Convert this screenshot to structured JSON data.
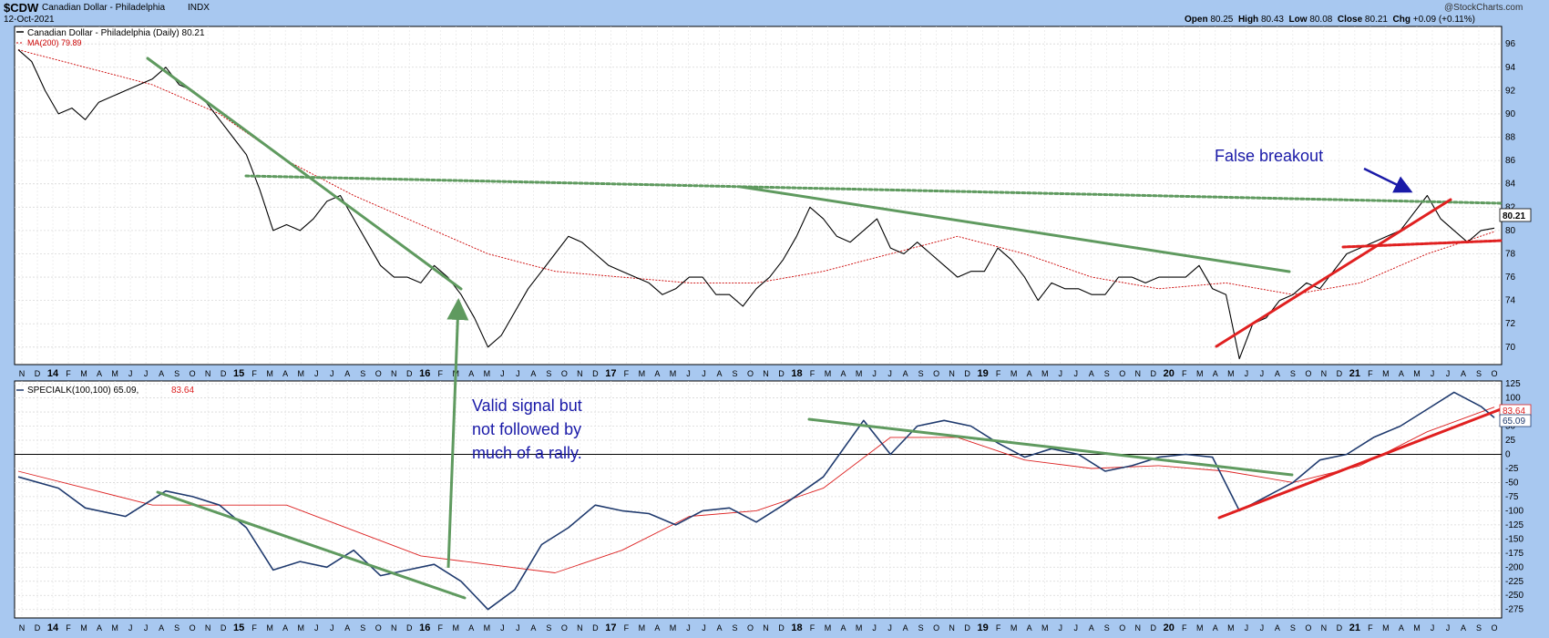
{
  "header": {
    "symbol": "$CDW",
    "name": "Canadian Dollar - Philadelphia",
    "exchange": "INDX",
    "date": "12-Oct-2021",
    "watermark": "@StockCharts.com",
    "ohlc": {
      "open_label": "Open",
      "open": "80.25",
      "high_label": "High",
      "high": "80.43",
      "low_label": "Low",
      "low": "80.08",
      "close_label": "Close",
      "close": "80.21",
      "chg_label": "Chg",
      "chg": "+0.09 (+0.11%)"
    }
  },
  "legends": {
    "price_line": "Canadian Dollar - Philadelphia (Daily) 80.21",
    "ma_line": "MA(200) 79.89",
    "special_line": "SPECIALK(100,100) 65.09,",
    "special_signal": "83.64"
  },
  "badges": {
    "price_last": "80.21",
    "special_signal": "83.64",
    "special_last": "65.09"
  },
  "annotations": {
    "false_breakout": "False breakout",
    "valid_signal": [
      "Valid signal but",
      "not followed by",
      "much of a rally."
    ]
  },
  "colors": {
    "background": "#a8c8f0",
    "panel": "#ffffff",
    "price": "#000000",
    "ma": "#cc0000",
    "special": "#1f3a6e",
    "signal": "#dd2222",
    "trend_green": "#5f9a5f",
    "trend_red": "#e02020",
    "annotation": "#1a1aa8"
  },
  "chart_data": [
    {
      "type": "line",
      "title": "Canadian Dollar - Philadelphia (Daily)",
      "x_axis": {
        "year_labels": [
          "14",
          "15",
          "16",
          "17",
          "18",
          "19",
          "20",
          "21"
        ],
        "month_ticks": [
          "N",
          "D",
          "14",
          "F",
          "M",
          "A",
          "M",
          "J",
          "J",
          "A",
          "S",
          "O",
          "N",
          "D",
          "15",
          "F",
          "M",
          "A",
          "M",
          "J",
          "J",
          "A",
          "S",
          "O",
          "N",
          "D",
          "16",
          "F",
          "M",
          "A",
          "M",
          "J",
          "J",
          "A",
          "S",
          "O",
          "N",
          "D",
          "17",
          "F",
          "M",
          "A",
          "M",
          "J",
          "J",
          "A",
          "S",
          "O",
          "N",
          "D",
          "18",
          "F",
          "M",
          "A",
          "M",
          "J",
          "J",
          "A",
          "S",
          "O",
          "N",
          "D",
          "19",
          "F",
          "M",
          "A",
          "M",
          "J",
          "J",
          "A",
          "S",
          "O",
          "N",
          "D",
          "20",
          "F",
          "M",
          "A",
          "M",
          "J",
          "J",
          "A",
          "S",
          "O",
          "N",
          "D",
          "21",
          "F",
          "M",
          "A",
          "M",
          "J",
          "J",
          "A",
          "S",
          "O"
        ]
      },
      "y_axis": {
        "ticks": [
          70,
          72,
          74,
          76,
          78,
          80,
          82,
          84,
          86,
          88,
          90,
          92,
          94,
          96
        ],
        "range": [
          68.5,
          97.5
        ],
        "position": "right"
      },
      "grid": true,
      "series": [
        {
          "name": "Canadian Dollar - Philadelphia (Daily)",
          "points": [
            [
              0,
              95.5
            ],
            [
              1,
              94.5
            ],
            [
              2,
              92
            ],
            [
              3,
              90
            ],
            [
              4,
              90.5
            ],
            [
              5,
              89.5
            ],
            [
              6,
              91
            ],
            [
              7,
              91.5
            ],
            [
              8,
              92
            ],
            [
              9,
              92.5
            ],
            [
              10,
              93
            ],
            [
              11,
              94
            ],
            [
              12,
              92.5
            ],
            [
              13,
              92
            ],
            [
              14,
              91
            ],
            [
              15,
              89.5
            ],
            [
              16,
              88
            ],
            [
              17,
              86.5
            ],
            [
              18,
              83.5
            ],
            [
              19,
              80
            ],
            [
              20,
              80.5
            ],
            [
              21,
              80
            ],
            [
              22,
              81
            ],
            [
              23,
              82.5
            ],
            [
              24,
              83
            ],
            [
              25,
              81
            ],
            [
              26,
              79
            ],
            [
              27,
              77
            ],
            [
              28,
              76
            ],
            [
              29,
              76
            ],
            [
              30,
              75.5
            ],
            [
              31,
              77
            ],
            [
              32,
              76
            ],
            [
              33,
              74.5
            ],
            [
              34,
              72.5
            ],
            [
              35,
              70
            ],
            [
              36,
              71
            ],
            [
              37,
              73
            ],
            [
              38,
              75
            ],
            [
              39,
              76.5
            ],
            [
              40,
              78
            ],
            [
              41,
              79.5
            ],
            [
              42,
              79
            ],
            [
              43,
              78
            ],
            [
              44,
              77
            ],
            [
              45,
              76.5
            ],
            [
              46,
              76
            ],
            [
              47,
              75.5
            ],
            [
              48,
              74.5
            ],
            [
              49,
              75
            ],
            [
              50,
              76
            ],
            [
              51,
              76
            ],
            [
              52,
              74.5
            ],
            [
              53,
              74.5
            ],
            [
              54,
              73.5
            ],
            [
              55,
              75
            ],
            [
              56,
              76
            ],
            [
              57,
              77.5
            ],
            [
              58,
              79.5
            ],
            [
              59,
              82
            ],
            [
              60,
              81
            ],
            [
              61,
              79.5
            ],
            [
              62,
              79
            ],
            [
              63,
              80
            ],
            [
              64,
              81
            ],
            [
              65,
              78.5
            ],
            [
              66,
              78
            ],
            [
              67,
              79
            ],
            [
              68,
              78
            ],
            [
              69,
              77
            ],
            [
              70,
              76
            ],
            [
              71,
              76.5
            ],
            [
              72,
              76.5
            ],
            [
              73,
              78.5
            ],
            [
              74,
              77.5
            ],
            [
              75,
              76
            ],
            [
              76,
              74
            ],
            [
              77,
              75.5
            ],
            [
              78,
              75
            ],
            [
              79,
              75
            ],
            [
              80,
              74.5
            ],
            [
              81,
              74.5
            ],
            [
              82,
              76
            ],
            [
              83,
              76
            ],
            [
              84,
              75.5
            ],
            [
              85,
              76
            ],
            [
              86,
              76
            ],
            [
              87,
              76
            ],
            [
              88,
              77
            ],
            [
              89,
              75
            ],
            [
              90,
              74.5
            ],
            [
              91,
              69
            ],
            [
              92,
              72
            ],
            [
              93,
              72.5
            ],
            [
              94,
              74
            ],
            [
              95,
              74.5
            ],
            [
              96,
              75.5
            ],
            [
              97,
              75
            ],
            [
              98,
              76.5
            ],
            [
              99,
              78
            ],
            [
              100,
              78.5
            ],
            [
              101,
              79
            ],
            [
              102,
              79.5
            ],
            [
              103,
              80
            ],
            [
              104,
              81.5
            ],
            [
              105,
              83
            ],
            [
              106,
              81
            ],
            [
              107,
              80
            ],
            [
              108,
              79
            ],
            [
              109,
              80
            ],
            [
              110,
              80.2
            ]
          ]
        },
        {
          "name": "MA(200)",
          "points": [
            [
              0,
              95.5
            ],
            [
              5,
              94
            ],
            [
              10,
              92.5
            ],
            [
              15,
              90
            ],
            [
              20,
              86
            ],
            [
              25,
              83
            ],
            [
              30,
              80.5
            ],
            [
              35,
              78
            ],
            [
              40,
              76.5
            ],
            [
              45,
              76
            ],
            [
              50,
              75.5
            ],
            [
              55,
              75.5
            ],
            [
              60,
              76.5
            ],
            [
              65,
              78
            ],
            [
              70,
              79.5
            ],
            [
              75,
              78
            ],
            [
              80,
              76
            ],
            [
              85,
              75
            ],
            [
              90,
              75.5
            ],
            [
              95,
              74.5
            ],
            [
              100,
              75.5
            ],
            [
              105,
              78
            ],
            [
              110,
              79.9
            ]
          ]
        }
      ]
    },
    {
      "type": "line",
      "title": "SPECIALK(100,100)",
      "y_axis": {
        "ticks": [
          -275,
          -250,
          -225,
          -200,
          -175,
          -150,
          -125,
          -100,
          -75,
          -50,
          -25,
          0,
          25,
          50,
          75,
          100,
          125
        ],
        "range": [
          -290,
          130
        ],
        "position": "right"
      },
      "grid": true,
      "series": [
        {
          "name": "SPECIALK(100,100)",
          "points": [
            [
              0,
              -40
            ],
            [
              3,
              -60
            ],
            [
              5,
              -95
            ],
            [
              8,
              -110
            ],
            [
              11,
              -65
            ],
            [
              13,
              -75
            ],
            [
              15,
              -90
            ],
            [
              17,
              -130
            ],
            [
              19,
              -205
            ],
            [
              21,
              -190
            ],
            [
              23,
              -200
            ],
            [
              25,
              -170
            ],
            [
              27,
              -215
            ],
            [
              29,
              -205
            ],
            [
              31,
              -195
            ],
            [
              33,
              -225
            ],
            [
              35,
              -275
            ],
            [
              37,
              -240
            ],
            [
              39,
              -160
            ],
            [
              41,
              -130
            ],
            [
              43,
              -90
            ],
            [
              45,
              -100
            ],
            [
              47,
              -105
            ],
            [
              49,
              -125
            ],
            [
              51,
              -100
            ],
            [
              53,
              -95
            ],
            [
              55,
              -120
            ],
            [
              57,
              -90
            ],
            [
              60,
              -40
            ],
            [
              63,
              60
            ],
            [
              65,
              0
            ],
            [
              67,
              50
            ],
            [
              69,
              60
            ],
            [
              71,
              50
            ],
            [
              73,
              20
            ],
            [
              75,
              -5
            ],
            [
              77,
              10
            ],
            [
              79,
              0
            ],
            [
              81,
              -30
            ],
            [
              83,
              -20
            ],
            [
              85,
              -5
            ],
            [
              87,
              0
            ],
            [
              89,
              -5
            ],
            [
              91,
              -100
            ],
            [
              93,
              -75
            ],
            [
              95,
              -50
            ],
            [
              97,
              -10
            ],
            [
              99,
              0
            ],
            [
              101,
              30
            ],
            [
              103,
              50
            ],
            [
              105,
              80
            ],
            [
              107,
              110
            ],
            [
              109,
              85
            ],
            [
              110,
              65
            ]
          ]
        },
        {
          "name": "Signal",
          "points": [
            [
              0,
              -30
            ],
            [
              10,
              -90
            ],
            [
              20,
              -90
            ],
            [
              30,
              -180
            ],
            [
              40,
              -210
            ],
            [
              45,
              -170
            ],
            [
              50,
              -110
            ],
            [
              55,
              -100
            ],
            [
              60,
              -60
            ],
            [
              65,
              30
            ],
            [
              70,
              30
            ],
            [
              75,
              -10
            ],
            [
              80,
              -25
            ],
            [
              85,
              -20
            ],
            [
              90,
              -30
            ],
            [
              95,
              -50
            ],
            [
              100,
              -20
            ],
            [
              105,
              40
            ],
            [
              110,
              83.6
            ]
          ]
        }
      ]
    }
  ]
}
